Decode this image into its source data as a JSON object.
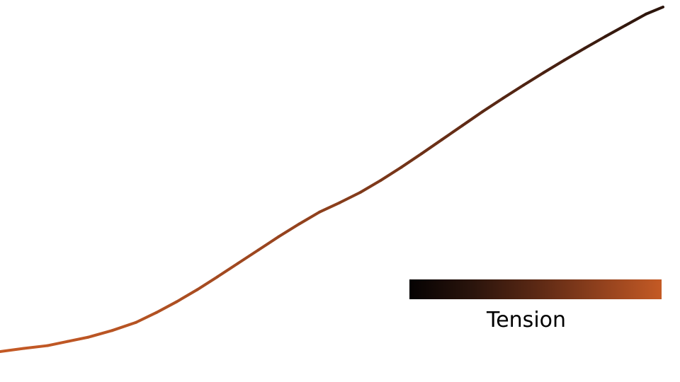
{
  "chart_data": {
    "type": "line",
    "title": "",
    "xlabel": "",
    "ylabel": "",
    "grid": false,
    "legend": "none",
    "colorbar": {
      "label": "Tension",
      "placement": "bottom-right",
      "colors": [
        "#050202",
        "#2a140c",
        "#5a2814",
        "#8f401d",
        "#c45a25"
      ]
    },
    "xlim": [
      0,
      1
    ],
    "ylim": [
      0,
      1
    ],
    "series": [
      {
        "x": [
          0.0,
          0.035,
          0.07,
          0.1,
          0.13,
          0.165,
          0.2,
          0.23,
          0.26,
          0.29,
          0.32,
          0.35,
          0.38,
          0.41,
          0.44,
          0.47,
          0.5,
          0.53,
          0.56,
          0.59,
          0.62,
          0.65,
          0.68,
          0.71,
          0.74,
          0.77,
          0.8,
          0.83,
          0.86,
          0.89,
          0.92,
          0.95,
          0.975
        ],
        "y": [
          0.0,
          0.009,
          0.017,
          0.029,
          0.041,
          0.06,
          0.083,
          0.111,
          0.142,
          0.176,
          0.213,
          0.251,
          0.289,
          0.327,
          0.363,
          0.397,
          0.424,
          0.453,
          0.487,
          0.524,
          0.563,
          0.603,
          0.643,
          0.683,
          0.721,
          0.758,
          0.794,
          0.829,
          0.863,
          0.896,
          0.928,
          0.96,
          0.98
        ],
        "tension": [
          1.0,
          0.99,
          0.98,
          0.97,
          0.96,
          0.95,
          0.93,
          0.91,
          0.89,
          0.87,
          0.85,
          0.83,
          0.81,
          0.79,
          0.77,
          0.75,
          0.72,
          0.69,
          0.66,
          0.63,
          0.6,
          0.57,
          0.54,
          0.51,
          0.48,
          0.45,
          0.42,
          0.39,
          0.36,
          0.33,
          0.3,
          0.27,
          0.25
        ]
      }
    ]
  }
}
